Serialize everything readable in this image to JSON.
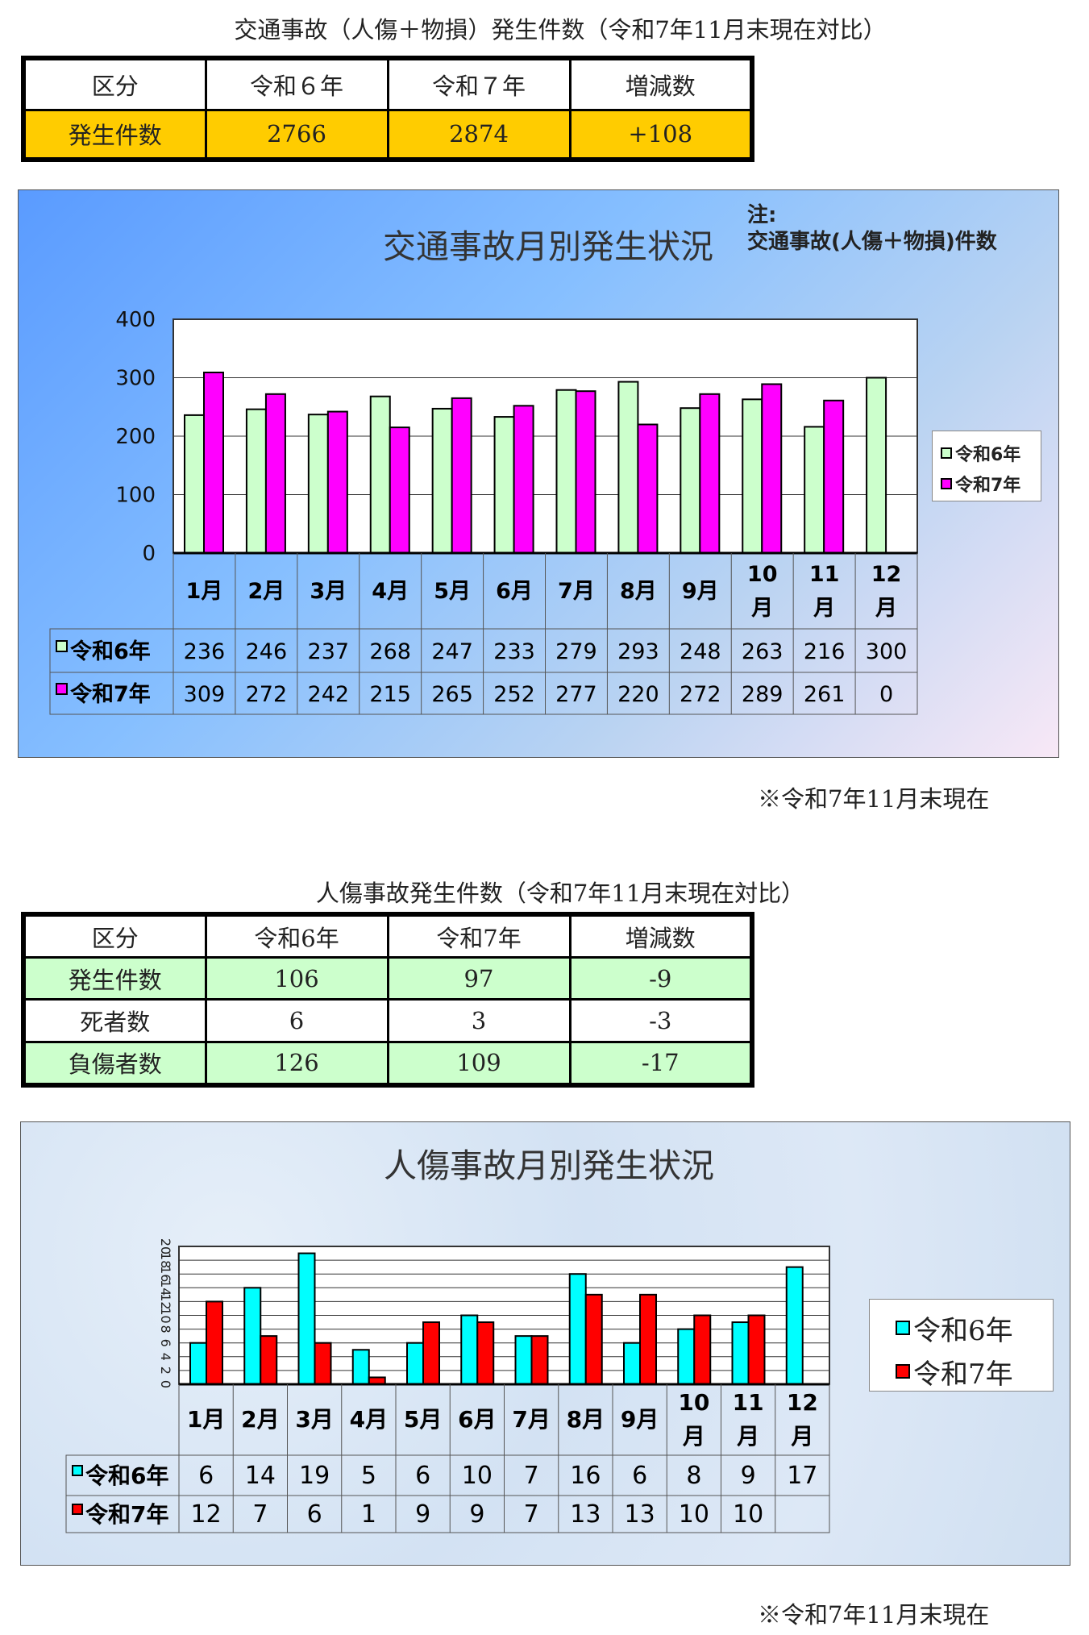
{
  "section1": {
    "title": "交通事故（人傷＋物損）発生件数（令和7年11月末現在対比）",
    "table": {
      "headers": [
        "区分",
        "令和６年",
        "令和７年",
        "増減数"
      ],
      "rows": [
        [
          "発生件数",
          "2766",
          "2874",
          "+108"
        ]
      ]
    },
    "note_label": "注:",
    "note_text": "交通事故(人傷＋物損)件数",
    "footnote": "※令和7年11月末現在"
  },
  "section2": {
    "title": "人傷事故発生件数（令和7年11月末現在対比）",
    "table": {
      "headers": [
        "区分",
        "令和6年",
        "令和7年",
        "増減数"
      ],
      "rows": [
        [
          "発生件数",
          "106",
          "97",
          "-9"
        ],
        [
          "死者数",
          "6",
          "3",
          "-3"
        ],
        [
          "負傷者数",
          "126",
          "109",
          "-17"
        ]
      ]
    },
    "footnote": "※令和7年11月末現在"
  },
  "colors": {
    "table1_highlight": "#ffcc00",
    "table2_highlight": "#ccffcc",
    "chart1_series": [
      "#ccffcc",
      "#ff00ff"
    ],
    "chart2_series": [
      "#00ffff",
      "#ff0000"
    ]
  },
  "chart_data": [
    {
      "type": "bar",
      "title": "交通事故月別発生状況",
      "categories": [
        "1月",
        "2月",
        "3月",
        "4月",
        "5月",
        "6月",
        "7月",
        "8月",
        "9月",
        "10月",
        "11月",
        "12月"
      ],
      "series": [
        {
          "name": "令和6年",
          "values": [
            236,
            246,
            237,
            268,
            247,
            233,
            279,
            293,
            248,
            263,
            216,
            300
          ]
        },
        {
          "name": "令和7年",
          "values": [
            309,
            272,
            242,
            215,
            265,
            252,
            277,
            220,
            272,
            289,
            261,
            0
          ]
        }
      ],
      "ylim": [
        0,
        400
      ],
      "yticks": [
        0,
        100,
        200,
        300,
        400
      ],
      "grid": true,
      "legend": "right",
      "data_table": true
    },
    {
      "type": "bar",
      "title": "人傷事故月別発生状況",
      "categories": [
        "1月",
        "2月",
        "3月",
        "4月",
        "5月",
        "6月",
        "7月",
        "8月",
        "9月",
        "10月",
        "11月",
        "12月"
      ],
      "series": [
        {
          "name": "令和6年",
          "values": [
            6,
            14,
            19,
            5,
            6,
            10,
            7,
            16,
            6,
            8,
            9,
            17
          ]
        },
        {
          "name": "令和7年",
          "values": [
            12,
            7,
            6,
            1,
            9,
            9,
            7,
            13,
            13,
            10,
            10,
            null
          ]
        }
      ],
      "ylim": [
        0,
        20
      ],
      "yticks": [
        0,
        2,
        4,
        6,
        8,
        10,
        12,
        14,
        16,
        18,
        20
      ],
      "grid": true,
      "legend": "right",
      "data_table": true
    }
  ]
}
